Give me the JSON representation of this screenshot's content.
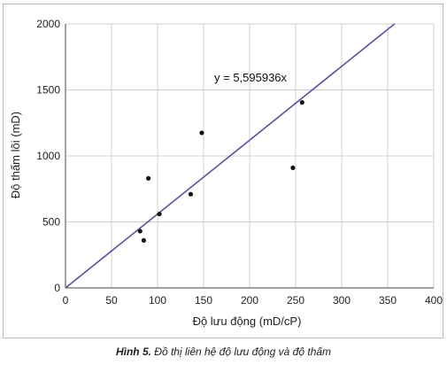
{
  "chart_data": {
    "type": "scatter",
    "xlabel": "Độ lưu động (mD/cP)",
    "ylabel": "Độ thấm lõi (mD)",
    "xlim": [
      0,
      400
    ],
    "ylim": [
      0,
      2000
    ],
    "xticks": [
      0,
      50,
      100,
      150,
      200,
      250,
      300,
      350,
      400
    ],
    "yticks": [
      0,
      500,
      1000,
      1500,
      2000
    ],
    "grid": true,
    "points": [
      {
        "x": 81,
        "y": 430
      },
      {
        "x": 85,
        "y": 360
      },
      {
        "x": 90,
        "y": 830
      },
      {
        "x": 102,
        "y": 560
      },
      {
        "x": 136,
        "y": 710
      },
      {
        "x": 148,
        "y": 1175
      },
      {
        "x": 247,
        "y": 910
      },
      {
        "x": 257,
        "y": 1405
      }
    ],
    "trendline": {
      "slope": 5.595936,
      "intercept": 0,
      "color": "#5a4fa0"
    },
    "annotation": "y = 5,595936x",
    "point_color": "#111111"
  },
  "caption": {
    "lead": "Hình 5.",
    "text": " Đồ thị liên hệ độ lưu động và độ thấm"
  }
}
